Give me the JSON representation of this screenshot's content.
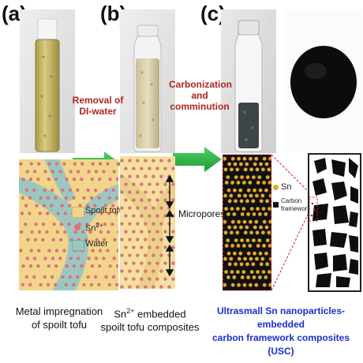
{
  "panels": {
    "a": "(a)",
    "b": "(b)",
    "c": "(c)"
  },
  "steps": {
    "removal": [
      "Removal of",
      "DI-water"
    ],
    "carbonization": [
      "Carbonization",
      "and",
      "comminution"
    ]
  },
  "legend": {
    "tofu": "Spoilt tofu",
    "sn_base": "Sn",
    "sn_sup": "2+",
    "water": "Water"
  },
  "labels": {
    "micropores": "Micropores",
    "sn_dot": "Sn",
    "carbon": [
      "Carbon",
      "framework"
    ]
  },
  "captions": {
    "a": [
      "Metal impregnation",
      "of spoilt tofu"
    ],
    "b_line1_base": "Sn",
    "b_line1_sup": "2+",
    "b_line1_rest": " embedded",
    "b_line2": "spoilt tofu composites",
    "c": [
      "Ultrasmall Sn nanoparticles-embedded",
      "carbon framework composites (USC)"
    ]
  },
  "colors": {
    "tofu": "#f2d58a",
    "water": "#9cc7c0",
    "sn": "#d9747c",
    "carbon": "#111111",
    "nano": "#e3a82a",
    "arrow": "#26b53f",
    "step_text": "#b22222",
    "caption_blue": "#1a2fcc"
  }
}
